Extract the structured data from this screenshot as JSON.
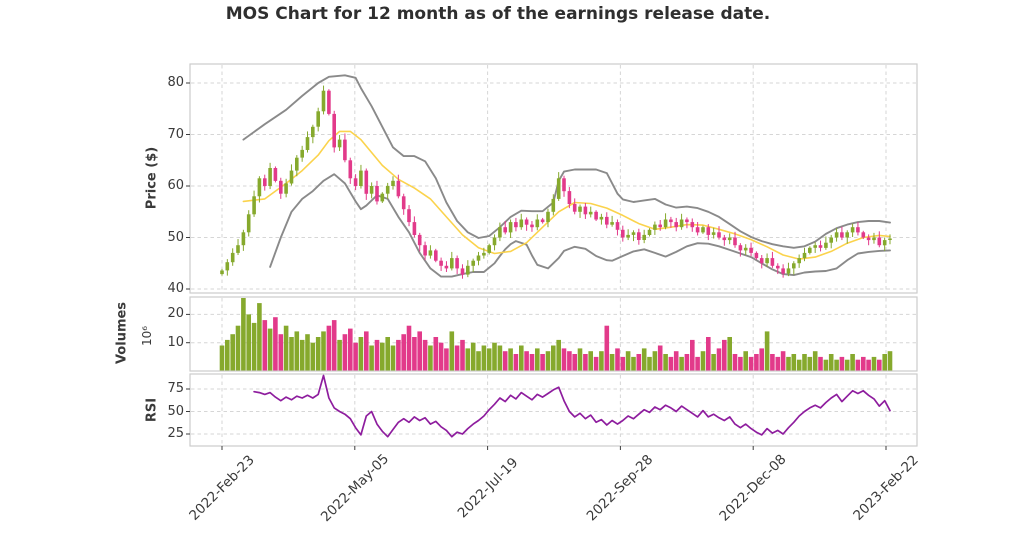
{
  "title": "MOS Chart for 12 month as of the earnings release date.",
  "colors": {
    "up": "#86a92d",
    "down": "#e23a8a",
    "ma_line": "#fbd34c",
    "band_line": "#8a8a8a",
    "rsi_line": "#8e1d9e",
    "grid": "#d6d6d6",
    "spine": "#cccccc",
    "text": "#3a3a3a"
  },
  "chart_data": {
    "type": "candlestick",
    "title": "MOS Chart for 12 month as of the earnings release date.",
    "xticks": {
      "labels": [
        "2022-Feb-23",
        "2022-May-05",
        "2022-Jul-19",
        "2022-Sep-28",
        "2022-Dec-08",
        "2023-Feb-22"
      ],
      "index_positions": [
        0,
        24.85,
        49.7,
        74.55,
        99.4,
        124.25
      ]
    },
    "price_panel": {
      "ylabel": "Price ($)",
      "yticks": [
        40,
        50,
        60,
        70,
        80
      ],
      "ylim": [
        39,
        84
      ],
      "first_open": 42.9,
      "close": [
        43.6,
        45.2,
        47.0,
        48.5,
        51.0,
        54.5,
        58.0,
        61.5,
        60.0,
        63.5,
        61.0,
        58.5,
        60.5,
        63.0,
        65.5,
        67.0,
        69.5,
        71.5,
        74.5,
        78.5,
        74.0,
        67.5,
        69.0,
        65.0,
        61.5,
        60.0,
        63.0,
        58.5,
        60.0,
        57.0,
        58.5,
        60.0,
        61.0,
        58.0,
        55.5,
        53.0,
        50.5,
        48.5,
        46.5,
        47.5,
        45.5,
        44.5,
        44.0,
        46.0,
        44.0,
        42.8,
        44.5,
        45.5,
        46.5,
        47.0,
        48.5,
        50.0,
        52.0,
        51.0,
        53.0,
        52.0,
        53.5,
        52.5,
        52.0,
        53.5,
        53.0,
        55.0,
        57.5,
        61.5,
        59.0,
        56.5,
        55.0,
        56.0,
        54.5,
        55.0,
        53.5,
        54.0,
        52.5,
        53.0,
        51.5,
        50.0,
        50.5,
        51.0,
        49.5,
        50.5,
        51.5,
        52.5,
        52.0,
        53.5,
        53.0,
        52.0,
        53.5,
        53.0,
        52.0,
        51.0,
        52.0,
        50.5,
        51.0,
        50.0,
        49.5,
        50.0,
        48.5,
        47.5,
        48.0,
        47.0,
        46.0,
        45.0,
        46.0,
        44.5,
        44.0,
        43.0,
        44.0,
        45.0,
        46.0,
        47.0,
        48.0,
        48.5,
        48.0,
        49.0,
        50.0,
        51.0,
        50.0,
        51.0,
        52.0,
        51.0,
        50.0,
        49.5,
        50.0,
        48.5,
        49.5,
        49.8
      ],
      "sma_keys": [
        [
          4,
          57
        ],
        [
          8,
          57.5
        ],
        [
          12,
          60.5
        ],
        [
          15,
          63
        ],
        [
          18,
          66
        ],
        [
          20,
          68.8
        ],
        [
          22,
          70.6
        ],
        [
          24,
          70.6
        ],
        [
          26,
          69
        ],
        [
          28,
          66.5
        ],
        [
          30,
          64
        ],
        [
          33,
          61.3
        ],
        [
          36,
          59.6
        ],
        [
          39,
          57.5
        ],
        [
          42,
          54
        ],
        [
          45,
          50.5
        ],
        [
          48,
          48
        ],
        [
          51,
          46.9
        ],
        [
          54,
          47.3
        ],
        [
          57,
          49
        ],
        [
          60,
          52
        ],
        [
          63,
          55
        ],
        [
          66,
          56.8
        ],
        [
          69,
          56.6
        ],
        [
          72,
          55.7
        ],
        [
          75,
          54.3
        ],
        [
          78,
          52.7
        ],
        [
          81,
          51.6
        ],
        [
          84,
          52
        ],
        [
          87,
          52.5
        ],
        [
          90,
          52.4
        ],
        [
          93,
          51.6
        ],
        [
          96,
          50.7
        ],
        [
          99,
          49.6
        ],
        [
          102,
          48.2
        ],
        [
          105,
          46.6
        ],
        [
          108,
          45.8
        ],
        [
          111,
          46.2
        ],
        [
          114,
          47.3
        ],
        [
          117,
          48.9
        ],
        [
          120,
          50
        ],
        [
          123,
          50.4
        ],
        [
          125,
          50.2
        ]
      ],
      "upper_band_keys": [
        [
          4,
          69
        ],
        [
          8,
          72
        ],
        [
          12,
          74.8
        ],
        [
          15,
          77.5
        ],
        [
          18,
          80
        ],
        [
          20,
          81.2
        ],
        [
          23,
          81.5
        ],
        [
          25,
          81
        ],
        [
          26,
          79
        ],
        [
          28,
          75.5
        ],
        [
          30,
          71.5
        ],
        [
          32,
          67.5
        ],
        [
          34,
          65.8
        ],
        [
          36,
          65.8
        ],
        [
          38,
          64.8
        ],
        [
          40,
          61.5
        ],
        [
          42,
          56.8
        ],
        [
          44,
          53.2
        ],
        [
          46,
          51
        ],
        [
          48,
          49.9
        ],
        [
          50,
          50.3
        ],
        [
          52,
          52
        ],
        [
          54,
          54
        ],
        [
          56,
          55.2
        ],
        [
          58,
          55.1
        ],
        [
          60,
          55.1
        ],
        [
          62,
          56.8
        ],
        [
          63,
          61
        ],
        [
          64,
          62.8
        ],
        [
          66,
          63.2
        ],
        [
          70,
          63.2
        ],
        [
          72,
          62.5
        ],
        [
          74,
          58.5
        ],
        [
          75,
          57.4
        ],
        [
          77,
          56.9
        ],
        [
          79,
          57.2
        ],
        [
          81,
          57.5
        ],
        [
          83,
          56.4
        ],
        [
          85,
          55.8
        ],
        [
          87,
          56
        ],
        [
          89,
          55.7
        ],
        [
          91,
          55
        ],
        [
          93,
          54
        ],
        [
          95,
          52.6
        ],
        [
          97,
          51.2
        ],
        [
          99,
          50.1
        ],
        [
          101,
          49.3
        ],
        [
          103,
          48.7
        ],
        [
          105,
          48.3
        ],
        [
          107,
          48
        ],
        [
          109,
          48.3
        ],
        [
          111,
          49.2
        ],
        [
          113,
          50.7
        ],
        [
          115,
          51.8
        ],
        [
          117,
          52.5
        ],
        [
          119,
          53
        ],
        [
          121,
          53.2
        ],
        [
          123,
          53.2
        ],
        [
          125,
          52.9
        ]
      ],
      "lower_band_keys": [
        [
          9,
          44.3
        ],
        [
          11,
          50
        ],
        [
          13,
          55
        ],
        [
          15,
          57.5
        ],
        [
          17,
          59
        ],
        [
          19,
          61
        ],
        [
          21,
          62.3
        ],
        [
          23,
          60.5
        ],
        [
          25,
          57
        ],
        [
          26,
          55.5
        ],
        [
          27,
          56.2
        ],
        [
          29,
          58.2
        ],
        [
          31,
          57.5
        ],
        [
          33,
          54
        ],
        [
          35,
          51
        ],
        [
          37,
          47
        ],
        [
          39,
          44
        ],
        [
          41,
          42.4
        ],
        [
          43,
          42.4
        ],
        [
          45,
          42.9
        ],
        [
          47,
          43.3
        ],
        [
          49,
          43.3
        ],
        [
          51,
          45
        ],
        [
          52,
          46.4
        ],
        [
          53,
          47.7
        ],
        [
          54,
          48.7
        ],
        [
          55,
          49.3
        ],
        [
          57,
          48.6
        ],
        [
          58,
          46.5
        ],
        [
          59,
          44.7
        ],
        [
          61,
          44
        ],
        [
          63,
          46
        ],
        [
          64,
          47.4
        ],
        [
          66,
          48.2
        ],
        [
          68,
          47.8
        ],
        [
          70,
          46.4
        ],
        [
          72,
          45.6
        ],
        [
          73,
          45.5
        ],
        [
          75,
          46.4
        ],
        [
          77,
          47.3
        ],
        [
          79,
          47.7
        ],
        [
          81,
          47
        ],
        [
          83,
          46.3
        ],
        [
          85,
          47.2
        ],
        [
          87,
          48.3
        ],
        [
          89,
          48.9
        ],
        [
          91,
          48.8
        ],
        [
          93,
          48.3
        ],
        [
          95,
          47.6
        ],
        [
          97,
          46.9
        ],
        [
          99,
          46.2
        ],
        [
          101,
          45
        ],
        [
          103,
          43.8
        ],
        [
          105,
          42.9
        ],
        [
          107,
          42.7
        ],
        [
          109,
          43.2
        ],
        [
          111,
          43.4
        ],
        [
          113,
          43.5
        ],
        [
          115,
          44
        ],
        [
          117,
          45.6
        ],
        [
          119,
          46.9
        ],
        [
          121,
          47.2
        ],
        [
          123,
          47.4
        ],
        [
          125,
          47.5
        ]
      ]
    },
    "volume_panel": {
      "ylabel": "Volumes",
      "offset_text": "10⁶",
      "yticks": [
        10,
        20
      ],
      "unit": "millions",
      "values": [
        9,
        11,
        13,
        16,
        27,
        20,
        17,
        24,
        18,
        15,
        19,
        13,
        16,
        12,
        14,
        11,
        13,
        10,
        12,
        14,
        16,
        18,
        11,
        13,
        15,
        10,
        12,
        14,
        9,
        11,
        10,
        12,
        9,
        11,
        13,
        16,
        12,
        14,
        11,
        9,
        12,
        10,
        8,
        14,
        9,
        11,
        8,
        10,
        7,
        9,
        8,
        10,
        9,
        7,
        8,
        6,
        9,
        7,
        6,
        8,
        6,
        7,
        9,
        11,
        8,
        7,
        6,
        8,
        6,
        7,
        5,
        7,
        16,
        6,
        8,
        5,
        7,
        5,
        6,
        8,
        5,
        7,
        9,
        6,
        5,
        7,
        5,
        6,
        11,
        5,
        7,
        12,
        6,
        8,
        11,
        12,
        6,
        5,
        7,
        5,
        6,
        8,
        14,
        6,
        5,
        7,
        5,
        6,
        4,
        6,
        5,
        7,
        5,
        4,
        6,
        4,
        5,
        4,
        6,
        4,
        5,
        4,
        5,
        4,
        6,
        7
      ]
    },
    "rsi_panel": {
      "ylabel": "RSI",
      "yticks": [
        25,
        50,
        75
      ],
      "start_index": 6,
      "values": [
        72,
        71,
        69,
        71,
        66,
        62,
        66,
        63,
        67,
        65,
        68,
        65,
        69,
        90,
        65,
        54,
        50,
        47,
        42,
        32,
        24,
        45,
        50,
        36,
        28,
        22,
        30,
        38,
        42,
        38,
        44,
        40,
        43,
        36,
        39,
        33,
        29,
        22,
        27,
        25,
        31,
        36,
        40,
        45,
        52,
        58,
        65,
        61,
        68,
        64,
        71,
        67,
        63,
        69,
        66,
        70,
        74,
        77,
        62,
        50,
        44,
        48,
        42,
        46,
        38,
        41,
        35,
        40,
        36,
        40,
        45,
        42,
        47,
        52,
        49,
        55,
        52,
        57,
        54,
        50,
        56,
        52,
        48,
        44,
        51,
        44,
        47,
        43,
        40,
        44,
        36,
        32,
        36,
        31,
        27,
        24,
        31,
        26,
        29,
        25,
        32,
        38,
        45,
        50,
        54,
        57,
        54,
        60,
        65,
        69,
        61,
        67,
        73,
        70,
        73,
        68,
        64,
        56,
        62,
        51
      ]
    }
  }
}
